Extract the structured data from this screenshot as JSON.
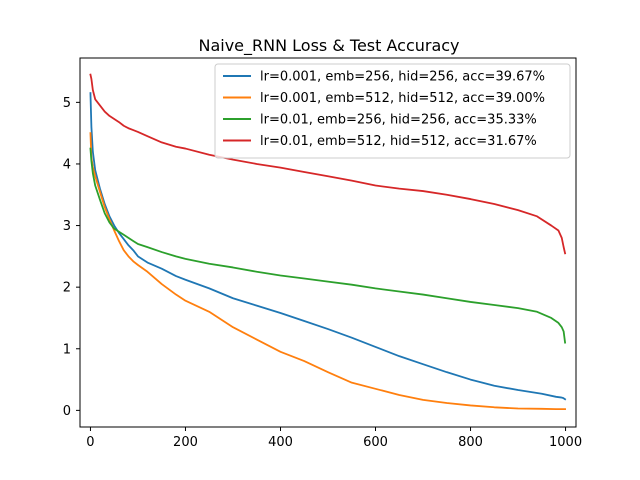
{
  "chart_data": {
    "type": "line",
    "title": "Naive_RNN Loss & Test Accuracy",
    "xlabel": "",
    "ylabel": "",
    "xlim": [
      -22,
      1022
    ],
    "ylim": [
      -0.27,
      5.72
    ],
    "xticks": [
      0,
      200,
      400,
      600,
      800,
      1000
    ],
    "yticks": [
      0,
      1,
      2,
      3,
      4,
      5
    ],
    "grid": false,
    "legend_position": "top-right",
    "series": [
      {
        "name": "lr=0.001, emb=256, hid=256, acc=39.67%",
        "color": "#1f77b4",
        "x": [
          0,
          2,
          5,
          10,
          20,
          30,
          40,
          50,
          60,
          70,
          80,
          90,
          100,
          120,
          150,
          180,
          200,
          250,
          300,
          350,
          400,
          450,
          500,
          550,
          600,
          650,
          700,
          750,
          800,
          850,
          900,
          950,
          980,
          990,
          995,
          999
        ],
        "y": [
          5.15,
          4.6,
          4.2,
          3.9,
          3.6,
          3.35,
          3.15,
          3.0,
          2.88,
          2.78,
          2.68,
          2.6,
          2.5,
          2.4,
          2.3,
          2.18,
          2.12,
          1.98,
          1.82,
          1.7,
          1.58,
          1.45,
          1.32,
          1.18,
          1.03,
          0.88,
          0.75,
          0.62,
          0.5,
          0.4,
          0.33,
          0.27,
          0.22,
          0.21,
          0.2,
          0.18
        ]
      },
      {
        "name": "lr=0.001, emb=512, hid=512, acc=39.00%",
        "color": "#ff7f0e",
        "x": [
          0,
          2,
          5,
          10,
          20,
          30,
          40,
          50,
          60,
          70,
          80,
          90,
          100,
          120,
          150,
          180,
          200,
          250,
          300,
          350,
          400,
          450,
          500,
          550,
          600,
          650,
          700,
          750,
          800,
          850,
          900,
          950,
          980,
          990,
          995,
          999
        ],
        "y": [
          4.5,
          4.1,
          3.95,
          3.8,
          3.55,
          3.3,
          3.1,
          2.92,
          2.75,
          2.6,
          2.5,
          2.42,
          2.36,
          2.25,
          2.05,
          1.88,
          1.78,
          1.6,
          1.35,
          1.15,
          0.95,
          0.8,
          0.62,
          0.45,
          0.35,
          0.25,
          0.17,
          0.12,
          0.08,
          0.05,
          0.03,
          0.025,
          0.02,
          0.02,
          0.02,
          0.02
        ]
      },
      {
        "name": "lr=0.01, emb=256, hid=256, acc=35.33%",
        "color": "#2ca02c",
        "x": [
          0,
          2,
          5,
          10,
          20,
          30,
          40,
          50,
          60,
          70,
          80,
          90,
          100,
          120,
          150,
          180,
          200,
          250,
          300,
          350,
          400,
          450,
          500,
          550,
          600,
          650,
          700,
          750,
          800,
          850,
          900,
          940,
          970,
          985,
          992,
          996,
          999
        ],
        "y": [
          4.25,
          4.05,
          3.85,
          3.65,
          3.42,
          3.2,
          3.05,
          2.95,
          2.9,
          2.85,
          2.8,
          2.75,
          2.7,
          2.65,
          2.57,
          2.5,
          2.46,
          2.38,
          2.32,
          2.25,
          2.19,
          2.14,
          2.09,
          2.04,
          1.98,
          1.93,
          1.88,
          1.82,
          1.76,
          1.71,
          1.66,
          1.6,
          1.5,
          1.42,
          1.35,
          1.28,
          1.1
        ]
      },
      {
        "name": "lr=0.01, emb=512, hid=512, acc=31.67%",
        "color": "#d62728",
        "x": [
          0,
          2,
          5,
          10,
          20,
          30,
          40,
          50,
          60,
          70,
          80,
          90,
          100,
          120,
          150,
          180,
          200,
          250,
          300,
          350,
          400,
          450,
          500,
          550,
          600,
          650,
          700,
          750,
          800,
          850,
          900,
          940,
          970,
          985,
          992,
          996,
          999
        ],
        "y": [
          5.45,
          5.38,
          5.2,
          5.05,
          4.95,
          4.85,
          4.78,
          4.73,
          4.68,
          4.62,
          4.58,
          4.55,
          4.52,
          4.45,
          4.35,
          4.28,
          4.25,
          4.15,
          4.07,
          4.0,
          3.94,
          3.87,
          3.8,
          3.73,
          3.65,
          3.6,
          3.56,
          3.5,
          3.43,
          3.35,
          3.25,
          3.15,
          3.0,
          2.92,
          2.8,
          2.65,
          2.55
        ]
      }
    ]
  }
}
